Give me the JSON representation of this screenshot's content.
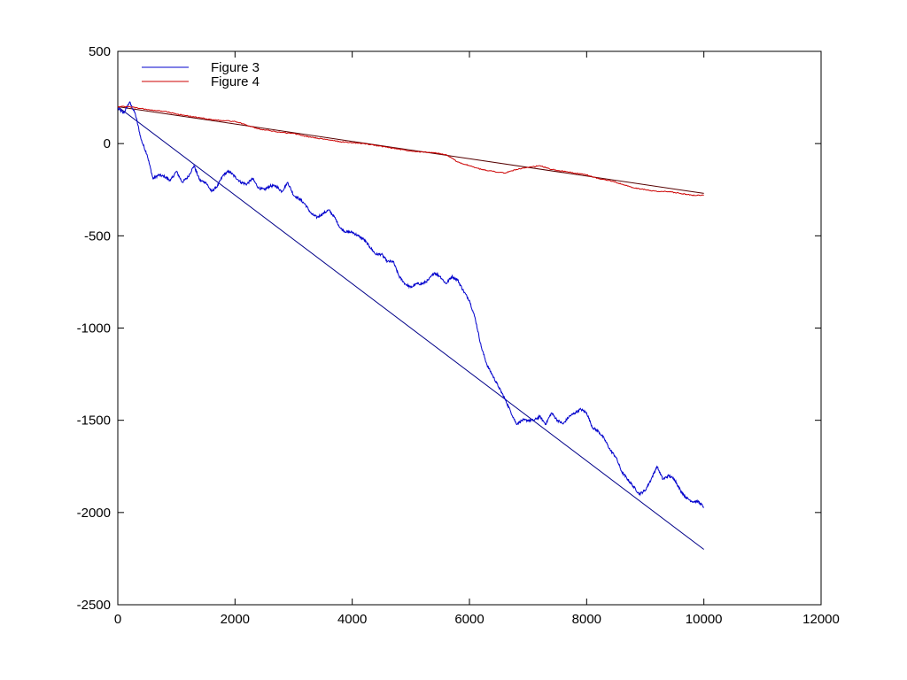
{
  "chart_data": {
    "type": "line",
    "xlim": [
      0,
      12000
    ],
    "ylim": [
      -2500,
      500
    ],
    "x_ticks": [
      0,
      2000,
      4000,
      6000,
      8000,
      10000,
      12000
    ],
    "y_ticks": [
      500,
      0,
      -500,
      -1000,
      -1500,
      -2000,
      -2500
    ],
    "x_tick_labels": [
      "0",
      "2000",
      "4000",
      "6000",
      "8000",
      "10000",
      "12000"
    ],
    "y_tick_labels": [
      "500",
      "0",
      "-500",
      "-1000",
      "-1500",
      "-2000",
      "-2500"
    ],
    "grid": false,
    "legend_position": "top-left",
    "series": [
      {
        "name": "Figure 3",
        "color": "#0000cc",
        "x": [
          0,
          100,
          200,
          300,
          400,
          500,
          600,
          700,
          800,
          900,
          1000,
          1100,
          1200,
          1300,
          1400,
          1500,
          1600,
          1700,
          1800,
          1900,
          2000,
          2100,
          2200,
          2300,
          2400,
          2500,
          2600,
          2700,
          2800,
          2900,
          3000,
          3100,
          3200,
          3300,
          3400,
          3500,
          3600,
          3700,
          3800,
          3900,
          4000,
          4100,
          4200,
          4300,
          4400,
          4500,
          4600,
          4700,
          4800,
          4900,
          5000,
          5100,
          5200,
          5300,
          5400,
          5500,
          5600,
          5700,
          5800,
          5900,
          6000,
          6100,
          6200,
          6300,
          6400,
          6500,
          6600,
          6700,
          6800,
          6900,
          7000,
          7100,
          7200,
          7300,
          7400,
          7500,
          7600,
          7700,
          7800,
          7900,
          8000,
          8100,
          8200,
          8300,
          8400,
          8500,
          8600,
          8700,
          8800,
          8900,
          9000,
          9100,
          9200,
          9300,
          9400,
          9500,
          9600,
          9700,
          9800,
          9900,
          10000
        ],
        "y": [
          190,
          165,
          225,
          160,
          20,
          -60,
          -190,
          -170,
          -180,
          -200,
          -150,
          -210,
          -180,
          -120,
          -200,
          -210,
          -260,
          -230,
          -170,
          -150,
          -180,
          -210,
          -220,
          -190,
          -240,
          -250,
          -230,
          -230,
          -260,
          -210,
          -280,
          -300,
          -330,
          -380,
          -400,
          -380,
          -360,
          -400,
          -460,
          -480,
          -480,
          -500,
          -520,
          -560,
          -600,
          -600,
          -640,
          -640,
          -720,
          -760,
          -780,
          -760,
          -760,
          -740,
          -700,
          -720,
          -760,
          -720,
          -740,
          -800,
          -850,
          -950,
          -1100,
          -1200,
          -1260,
          -1320,
          -1380,
          -1450,
          -1520,
          -1500,
          -1500,
          -1500,
          -1480,
          -1520,
          -1460,
          -1500,
          -1520,
          -1480,
          -1460,
          -1440,
          -1460,
          -1540,
          -1560,
          -1600,
          -1660,
          -1700,
          -1780,
          -1820,
          -1860,
          -1900,
          -1880,
          -1820,
          -1750,
          -1820,
          -1800,
          -1820,
          -1880,
          -1920,
          -1940,
          -1940,
          -1970
        ]
      },
      {
        "name": "Figure 4",
        "color": "#cc0000",
        "x": [
          0,
          200,
          400,
          600,
          800,
          1000,
          1200,
          1400,
          1600,
          1800,
          2000,
          2200,
          2400,
          2600,
          2800,
          3000,
          3200,
          3400,
          3600,
          3800,
          4000,
          4200,
          4400,
          4600,
          4800,
          5000,
          5200,
          5400,
          5600,
          5800,
          6000,
          6200,
          6400,
          6600,
          6800,
          7000,
          7200,
          7400,
          7600,
          7800,
          8000,
          8200,
          8400,
          8600,
          8800,
          9000,
          9200,
          9400,
          9600,
          9800,
          10000
        ],
        "y": [
          200,
          200,
          190,
          180,
          175,
          160,
          150,
          140,
          130,
          125,
          120,
          100,
          80,
          70,
          60,
          55,
          40,
          30,
          20,
          10,
          5,
          0,
          -10,
          -20,
          -30,
          -40,
          -45,
          -50,
          -60,
          -100,
          -120,
          -140,
          -150,
          -160,
          -140,
          -130,
          -120,
          -140,
          -150,
          -160,
          -170,
          -190,
          -200,
          -220,
          -240,
          -250,
          -260,
          -260,
          -270,
          -280,
          -280
        ]
      }
    ],
    "trend_lines": [
      {
        "color": "#000088",
        "x": [
          0,
          10000
        ],
        "y": [
          200,
          -2200
        ]
      },
      {
        "color": "#550000",
        "x": [
          0,
          10000
        ],
        "y": [
          200,
          -270
        ]
      }
    ]
  }
}
